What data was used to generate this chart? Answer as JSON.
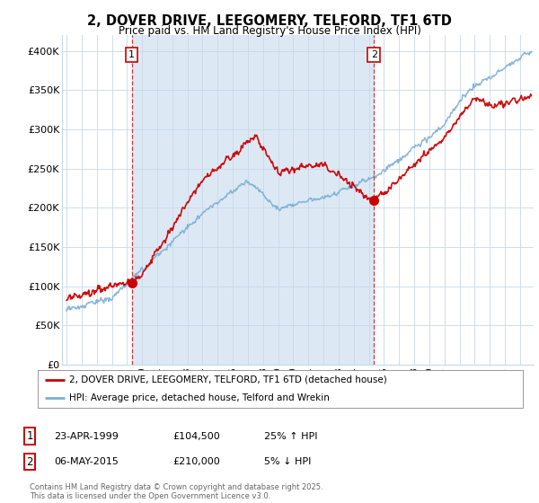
{
  "title": "2, DOVER DRIVE, LEEGOMERY, TELFORD, TF1 6TD",
  "subtitle": "Price paid vs. HM Land Registry's House Price Index (HPI)",
  "ylim": [
    0,
    420000
  ],
  "yticks": [
    0,
    50000,
    100000,
    150000,
    200000,
    250000,
    300000,
    350000,
    400000
  ],
  "ytick_labels": [
    "£0",
    "£50K",
    "£100K",
    "£150K",
    "£200K",
    "£250K",
    "£300K",
    "£350K",
    "£400K"
  ],
  "sale1_year": 1999.31,
  "sale1_price": 104500,
  "sale2_year": 2015.34,
  "sale2_price": 210000,
  "legend_entry1": "2, DOVER DRIVE, LEEGOMERY, TELFORD, TF1 6TD (detached house)",
  "legend_entry2": "HPI: Average price, detached house, Telford and Wrekin",
  "table_row1": [
    "1",
    "23-APR-1999",
    "£104,500",
    "25% ↑ HPI"
  ],
  "table_row2": [
    "2",
    "06-MAY-2015",
    "£210,000",
    "5% ↓ HPI"
  ],
  "copyright": "Contains HM Land Registry data © Crown copyright and database right 2025.\nThis data is licensed under the Open Government Licence v3.0.",
  "line_red_color": "#cc0000",
  "line_blue_color": "#7bafd4",
  "shade_color": "#dce9f5",
  "grid_color": "#c8d8e8",
  "background_color": "#ffffff",
  "xmin": 1994.7,
  "xmax": 2025.9
}
